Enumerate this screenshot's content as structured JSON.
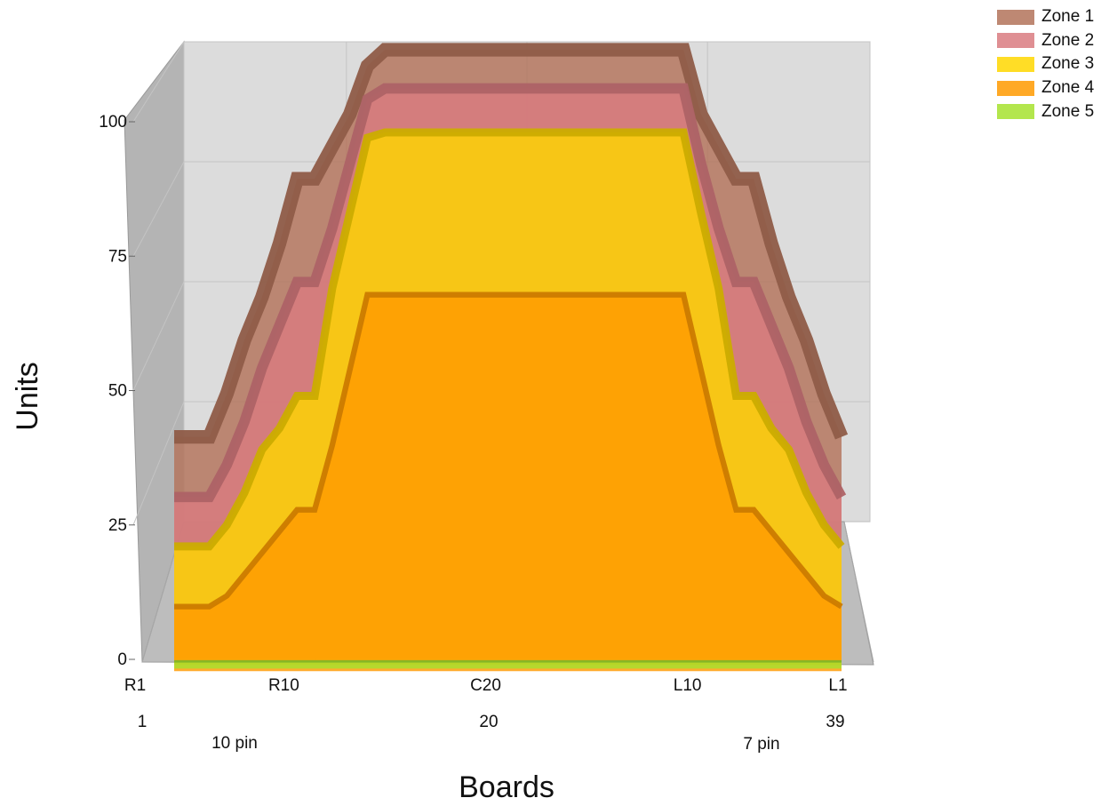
{
  "chart_data": {
    "type": "area",
    "title": "",
    "xlabel": "Boards",
    "ylabel": "Units",
    "ylim": [
      0,
      100
    ],
    "y_ticks": [
      "0",
      "25",
      "50",
      "75",
      "100"
    ],
    "x_tick_labels": [
      "R1",
      "R10",
      "C20",
      "L10",
      "L1"
    ],
    "x_tick_positions": [
      1,
      10,
      20,
      30,
      39
    ],
    "x_number_labels": [
      "1",
      "20",
      "39"
    ],
    "annotations": [
      "10 pin",
      "7 pin"
    ],
    "grid": true,
    "legend_placement": "top-right",
    "x": [
      1,
      2,
      3,
      4,
      5,
      6,
      7,
      8,
      9,
      10,
      11,
      12,
      13,
      14,
      15,
      16,
      17,
      18,
      19,
      20,
      21,
      22,
      23,
      24,
      25,
      26,
      27,
      28,
      29,
      30,
      31,
      32,
      33,
      34,
      35,
      36,
      37,
      38,
      39
    ],
    "series": [
      {
        "name": "Zone 1",
        "color": "#b3735a",
        "values": [
          40,
          40,
          40,
          48,
          58,
          66,
          76,
          88,
          88,
          94,
          100,
          109,
          112,
          112,
          112,
          112,
          112,
          112,
          112,
          112,
          112,
          112,
          112,
          112,
          112,
          112,
          112,
          112,
          112,
          112,
          100,
          94,
          88,
          88,
          76,
          66,
          58,
          48,
          40
        ]
      },
      {
        "name": "Zone 2",
        "color": "#d97b80",
        "values": [
          30,
          30,
          30,
          36,
          44,
          54,
          62,
          70,
          70,
          80,
          92,
          104,
          106,
          106,
          106,
          106,
          106,
          106,
          106,
          106,
          106,
          106,
          106,
          106,
          106,
          106,
          106,
          106,
          106,
          106,
          92,
          80,
          70,
          70,
          62,
          54,
          44,
          36,
          30
        ]
      },
      {
        "name": "Zone 3",
        "color": "#ffd700",
        "values": [
          22,
          22,
          22,
          26,
          32,
          40,
          44,
          50,
          50,
          70,
          84,
          98,
          99,
          99,
          99,
          99,
          99,
          99,
          99,
          99,
          99,
          99,
          99,
          99,
          99,
          99,
          99,
          99,
          99,
          99,
          84,
          70,
          50,
          50,
          44,
          40,
          32,
          26,
          22
        ]
      },
      {
        "name": "Zone 4",
        "color": "#ff9a00",
        "values": [
          12,
          12,
          12,
          14,
          18,
          22,
          26,
          30,
          30,
          42,
          56,
          70,
          70,
          70,
          70,
          70,
          70,
          70,
          70,
          70,
          70,
          70,
          70,
          70,
          70,
          70,
          70,
          70,
          70,
          70,
          56,
          42,
          30,
          30,
          26,
          22,
          18,
          14,
          12
        ]
      },
      {
        "name": "Zone 5",
        "color": "#a6e22e",
        "values": [
          3,
          3,
          3,
          3,
          3,
          3,
          3,
          3,
          3,
          3,
          3,
          3,
          3,
          3,
          3,
          3,
          3,
          3,
          3,
          3,
          3,
          3,
          3,
          3,
          3,
          3,
          3,
          3,
          3,
          3,
          3,
          3,
          3,
          3,
          3,
          3,
          3,
          3,
          3
        ]
      }
    ]
  }
}
